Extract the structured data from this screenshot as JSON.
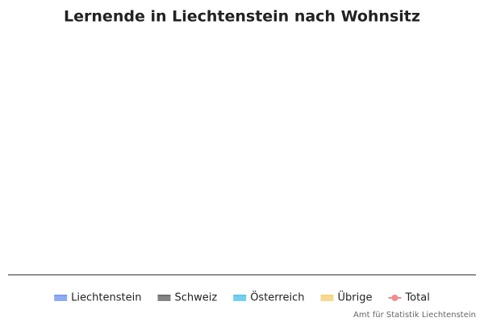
{
  "chart_data": {
    "type": "area",
    "title": "Lernende in Liechtenstein nach Wohnsitz",
    "categories": [],
    "series": [
      {
        "name": "Liechtenstein",
        "color": "#7b9cf5",
        "type": "area",
        "values": []
      },
      {
        "name": "Schweiz",
        "color": "#6e6e6e",
        "type": "area",
        "values": []
      },
      {
        "name": "Österreich",
        "color": "#5cc8ee",
        "type": "area",
        "values": []
      },
      {
        "name": "Übrige",
        "color": "#f6d47a",
        "type": "area",
        "values": []
      },
      {
        "name": "Total",
        "color": "#f28b8b",
        "type": "line",
        "values": []
      }
    ],
    "credit": "Amt für Statistik Liechtenstein"
  }
}
